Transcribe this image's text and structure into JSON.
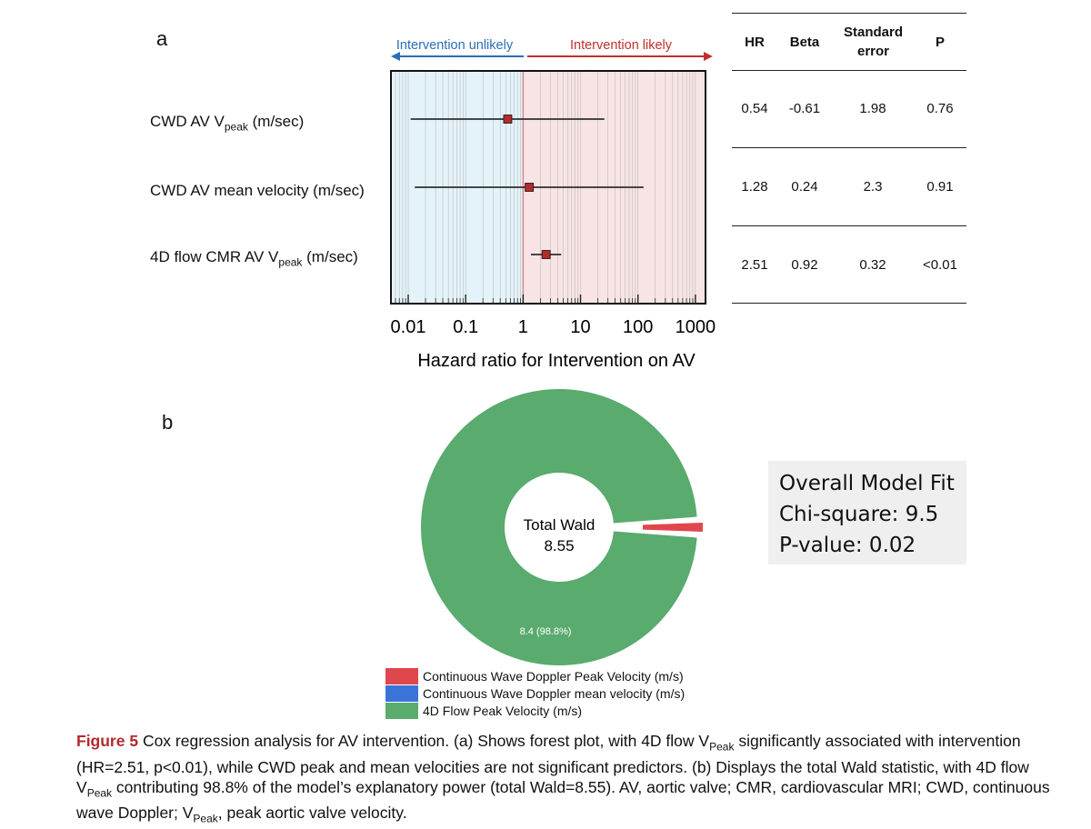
{
  "panel_a_label": "a",
  "panel_b_label": "b",
  "forest": {
    "direction_left": "Intervention unlikely",
    "direction_right": "Intervention likely",
    "xlabel": "Hazard ratio for Intervention on AV",
    "row_labels": [
      {
        "main": "CWD AV V",
        "sub": "peak",
        "tail": " (m/sec)"
      },
      {
        "main": "CWD AV mean velocity (m/sec)",
        "sub": "",
        "tail": ""
      },
      {
        "main": "4D flow CMR AV V",
        "sub": "peak",
        "tail": " (m/sec)"
      }
    ],
    "colors": {
      "unlikely_bg": "#e4f3f9",
      "likely_bg": "#f8e4e4",
      "marker": "#b22b2b",
      "left_arrow": "#2a6db5",
      "right_arrow": "#c0302e"
    }
  },
  "table": {
    "headers": [
      "HR",
      "Beta",
      "Standard error",
      "P"
    ],
    "rows": [
      [
        "0.54",
        "-0.61",
        "1.98",
        "0.76"
      ],
      [
        "1.28",
        "0.24",
        "2.3",
        "0.91"
      ],
      [
        "2.51",
        "0.92",
        "0.32",
        "<0.01"
      ]
    ]
  },
  "donut": {
    "center_title": "Total Wald",
    "center_value": "8.55",
    "slice_label": "8.4 (98.8%)",
    "legend": [
      {
        "label": "Continuous Wave Doppler Peak Velocity (m/s)",
        "color": "#e0474c"
      },
      {
        "label": "Continuous Wave Doppler mean velocity (m/s)",
        "color": "#3b73d8"
      },
      {
        "label": "4D Flow Peak Velocity (m/s)",
        "color": "#5aab6e"
      }
    ]
  },
  "model_fit": {
    "title": "Overall Model Fit",
    "chi": "Chi-square: 9.5",
    "pval": "P-value: 0.02"
  },
  "caption": {
    "fig": "Figure 5",
    "t1": "   Cox regression analysis for AV intervention. (a) Shows forest plot, with 4D flow V",
    "s1": "Peak",
    "t2": " significantly associated with intervention (HR=2.51, p<0.01), while CWD peak and mean velocities are not significant predictors. (b) Displays the total Wald statistic, with 4D flow V",
    "s2": "Peak",
    "t3": " contributing 98.8% of the model’s explanatory power (total Wald=8.55). AV, aortic valve; CMR, cardiovascular MRI; CWD, continuous wave Doppler; V",
    "s3": "Peak",
    "t4": ", peak aortic valve velocity."
  },
  "chart_data": [
    {
      "type": "scatter",
      "subtype": "forest",
      "xscale": "log",
      "xlim": [
        0.005,
        1500
      ],
      "xticks": [
        0.01,
        0.1,
        1,
        10,
        100,
        1000
      ],
      "xtick_labels": [
        "0.01",
        "0.1",
        "1",
        "10",
        "100",
        "1000"
      ],
      "xlabel": "Hazard ratio for Intervention on AV",
      "reference_line": 1,
      "categories": [
        "CWD AV Vpeak (m/sec)",
        "CWD AV mean velocity (m/sec)",
        "4D flow CMR AV Vpeak (m/sec)"
      ],
      "estimates": [
        0.54,
        1.28,
        2.51
      ],
      "ci_low": [
        0.011,
        0.013,
        1.37
      ],
      "ci_high": [
        26.0,
        125.0,
        4.6
      ]
    },
    {
      "type": "pie",
      "style": "donut",
      "categories": [
        "Continuous Wave Doppler Peak Velocity (m/s)",
        "Continuous Wave Doppler mean velocity (m/s)",
        "4D Flow Peak Velocity (m/s)"
      ],
      "values": [
        0.1,
        0.0,
        8.4
      ],
      "percent": [
        1.2,
        0.0,
        98.8
      ],
      "total": 8.55
    }
  ]
}
